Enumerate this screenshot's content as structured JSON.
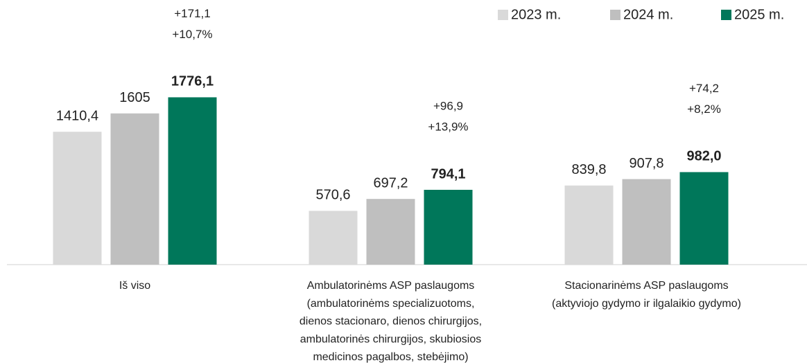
{
  "chart_data": {
    "type": "bar",
    "categories": [
      [
        "Iš viso"
      ],
      [
        "Ambulatorinėms ASP paslaugoms",
        "(ambulatorinėms specializuotoms,",
        "dienos stacionaro, dienos chirurgijos,",
        "ambulatorinės chirurgijos, skubiosios",
        "medicinos pagalbos, stebėjimo)"
      ],
      [
        "Stacionarinėms ASP paslaugoms",
        "(aktyviojo gydymo ir ilgalaikio gydymo)"
      ]
    ],
    "series": [
      {
        "name": "2023 m.",
        "color": "#d9d9d9",
        "values": [
          1410.4,
          570.6,
          839.8
        ],
        "value_labels": [
          "1410,4",
          "570,6",
          "839,8"
        ]
      },
      {
        "name": "2024 m.",
        "color": "#bfbfbf",
        "values": [
          1605,
          697.2,
          907.8
        ],
        "value_labels": [
          "1605",
          "697,2",
          "907,8"
        ]
      },
      {
        "name": "2025 m.",
        "color": "#00775a",
        "values": [
          1776.1,
          794.1,
          982.0
        ],
        "value_labels": [
          "1776,1",
          "794,1",
          "982,0"
        ],
        "bold_labels": true
      }
    ],
    "annotations": [
      [
        "+171,1",
        "+10,7%"
      ],
      [
        "+96,9",
        "+13,9%"
      ],
      [
        "+74,2",
        "+8,2%"
      ]
    ],
    "ylim": [
      0,
      2000
    ],
    "legend": "top-right"
  }
}
